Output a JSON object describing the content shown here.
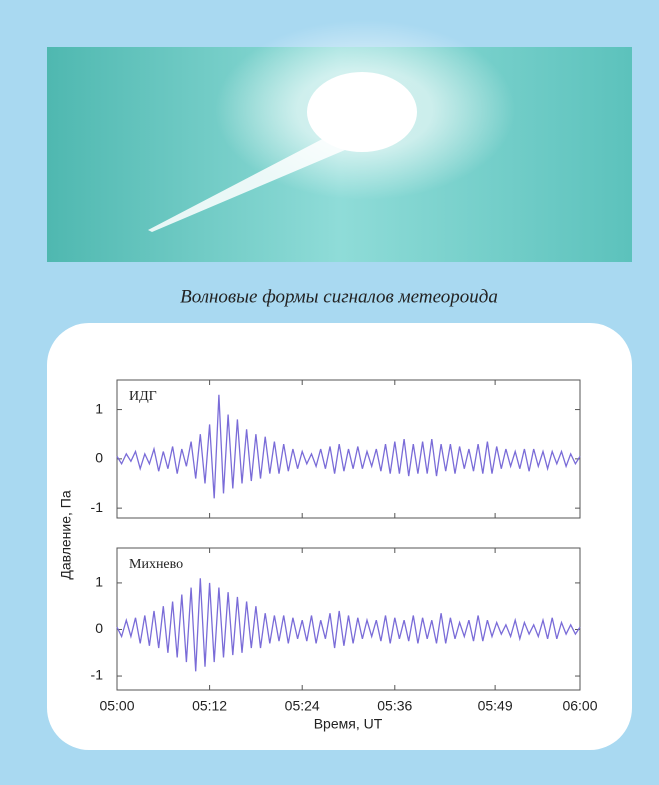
{
  "caption": "Волновые формы сигналов метеороида",
  "y_label": "Давление, Па",
  "x_label": "Время, UT",
  "chart_data": [
    {
      "type": "line",
      "annotation": "ИДГ",
      "ylim": [
        -1.2,
        1.6
      ],
      "yticks": [
        -1,
        0,
        1
      ],
      "xlim": [
        0,
        60
      ],
      "x": [
        0,
        0.6,
        1.2,
        1.8,
        2.4,
        3,
        3.6,
        4.2,
        4.8,
        5.4,
        6,
        6.6,
        7.2,
        7.8,
        8.4,
        9,
        9.6,
        10.2,
        10.8,
        11.4,
        12,
        12.6,
        13.2,
        13.8,
        14.4,
        15,
        15.6,
        16.2,
        16.8,
        17.4,
        18,
        18.6,
        19.2,
        19.8,
        20.4,
        21,
        21.6,
        22.2,
        22.8,
        23.4,
        24,
        24.6,
        25.2,
        25.8,
        26.4,
        27,
        27.6,
        28.2,
        28.8,
        29.4,
        30,
        30.6,
        31.2,
        31.8,
        32.4,
        33,
        33.6,
        34.2,
        34.8,
        35.4,
        36,
        36.6,
        37.2,
        37.8,
        38.4,
        39,
        39.6,
        40.2,
        40.8,
        41.4,
        42,
        42.6,
        43.2,
        43.8,
        44.4,
        45,
        45.6,
        46.2,
        46.8,
        47.4,
        48,
        48.6,
        49.2,
        49.8,
        50.4,
        51,
        51.6,
        52.2,
        52.8,
        53.4,
        54,
        54.6,
        55.2,
        55.8,
        56.4,
        57,
        57.6,
        58.2,
        58.8,
        59.4,
        60
      ],
      "color": "#7a6cd8",
      "values": [
        0.05,
        -0.1,
        0.1,
        -0.05,
        0.15,
        -0.2,
        0.1,
        -0.1,
        0.2,
        -0.25,
        0.15,
        -0.2,
        0.25,
        -0.3,
        0.2,
        -0.15,
        0.35,
        -0.4,
        0.5,
        -0.5,
        0.7,
        -0.8,
        1.3,
        -0.7,
        0.9,
        -0.6,
        0.8,
        -0.5,
        0.6,
        -0.45,
        0.5,
        -0.4,
        0.45,
        -0.3,
        0.35,
        -0.3,
        0.3,
        -0.25,
        0.2,
        -0.2,
        0.15,
        -0.1,
        0.1,
        -0.15,
        0.2,
        -0.2,
        0.25,
        -0.3,
        0.3,
        -0.25,
        0.2,
        -0.2,
        0.25,
        -0.2,
        0.15,
        -0.15,
        0.2,
        -0.25,
        0.3,
        -0.3,
        0.35,
        -0.3,
        0.4,
        -0.35,
        0.3,
        -0.3,
        0.35,
        -0.3,
        0.4,
        -0.35,
        0.3,
        -0.25,
        0.3,
        -0.3,
        0.25,
        -0.2,
        0.2,
        -0.25,
        0.3,
        -0.3,
        0.35,
        -0.3,
        0.25,
        -0.2,
        0.2,
        -0.15,
        0.15,
        -0.2,
        0.2,
        -0.25,
        0.2,
        -0.15,
        0.15,
        -0.2,
        0.15,
        -0.1,
        0.15,
        -0.15,
        0.1,
        -0.1,
        0.05
      ]
    },
    {
      "type": "line",
      "annotation": "Михнево",
      "ylim": [
        -1.3,
        1.75
      ],
      "yticks": [
        -1,
        0,
        1
      ],
      "xlim": [
        0,
        60
      ],
      "xticks": [
        {
          "value": 0,
          "label": "05:00"
        },
        {
          "value": 12,
          "label": "05:12"
        },
        {
          "value": 24,
          "label": "05:24"
        },
        {
          "value": 36,
          "label": "05:36"
        },
        {
          "value": 49,
          "label": "05:49"
        },
        {
          "value": 60,
          "label": "06:00"
        }
      ],
      "x": [
        0,
        0.6,
        1.2,
        1.8,
        2.4,
        3,
        3.6,
        4.2,
        4.8,
        5.4,
        6,
        6.6,
        7.2,
        7.8,
        8.4,
        9,
        9.6,
        10.2,
        10.8,
        11.4,
        12,
        12.6,
        13.2,
        13.8,
        14.4,
        15,
        15.6,
        16.2,
        16.8,
        17.4,
        18,
        18.6,
        19.2,
        19.8,
        20.4,
        21,
        21.6,
        22.2,
        22.8,
        23.4,
        24,
        24.6,
        25.2,
        25.8,
        26.4,
        27,
        27.6,
        28.2,
        28.8,
        29.4,
        30,
        30.6,
        31.2,
        31.8,
        32.4,
        33,
        33.6,
        34.2,
        34.8,
        35.4,
        36,
        36.6,
        37.2,
        37.8,
        38.4,
        39,
        39.6,
        40.2,
        40.8,
        41.4,
        42,
        42.6,
        43.2,
        43.8,
        44.4,
        45,
        45.6,
        46.2,
        46.8,
        47.4,
        48,
        48.6,
        49.2,
        49.8,
        50.4,
        51,
        51.6,
        52.2,
        52.8,
        53.4,
        54,
        54.6,
        55.2,
        55.8,
        56.4,
        57,
        57.6,
        58.2,
        58.8,
        59.4,
        60
      ],
      "color": "#7a6cd8",
      "values": [
        0.05,
        -0.15,
        0.2,
        -0.15,
        0.25,
        -0.3,
        0.3,
        -0.35,
        0.4,
        -0.4,
        0.5,
        -0.5,
        0.6,
        -0.6,
        0.75,
        -0.7,
        0.9,
        -0.9,
        1.1,
        -0.8,
        1.0,
        -0.7,
        0.9,
        -0.6,
        0.8,
        -0.55,
        0.7,
        -0.5,
        0.6,
        -0.4,
        0.5,
        -0.4,
        0.35,
        -0.3,
        0.3,
        -0.25,
        0.3,
        -0.3,
        0.25,
        -0.2,
        0.2,
        -0.25,
        0.3,
        -0.3,
        0.2,
        -0.2,
        0.35,
        -0.4,
        0.4,
        -0.35,
        0.3,
        -0.3,
        0.25,
        -0.2,
        0.2,
        -0.15,
        0.2,
        -0.25,
        0.3,
        -0.3,
        0.25,
        -0.2,
        0.2,
        -0.25,
        0.3,
        -0.3,
        0.25,
        -0.2,
        0.2,
        -0.3,
        0.35,
        -0.3,
        0.25,
        -0.2,
        0.15,
        -0.15,
        0.2,
        -0.25,
        0.3,
        -0.25,
        0.2,
        -0.15,
        0.15,
        -0.1,
        0.1,
        -0.15,
        0.2,
        -0.2,
        0.15,
        -0.1,
        0.1,
        -0.15,
        0.2,
        -0.2,
        0.25,
        -0.2,
        0.15,
        -0.1,
        0.1,
        -0.1,
        0.05
      ]
    }
  ]
}
